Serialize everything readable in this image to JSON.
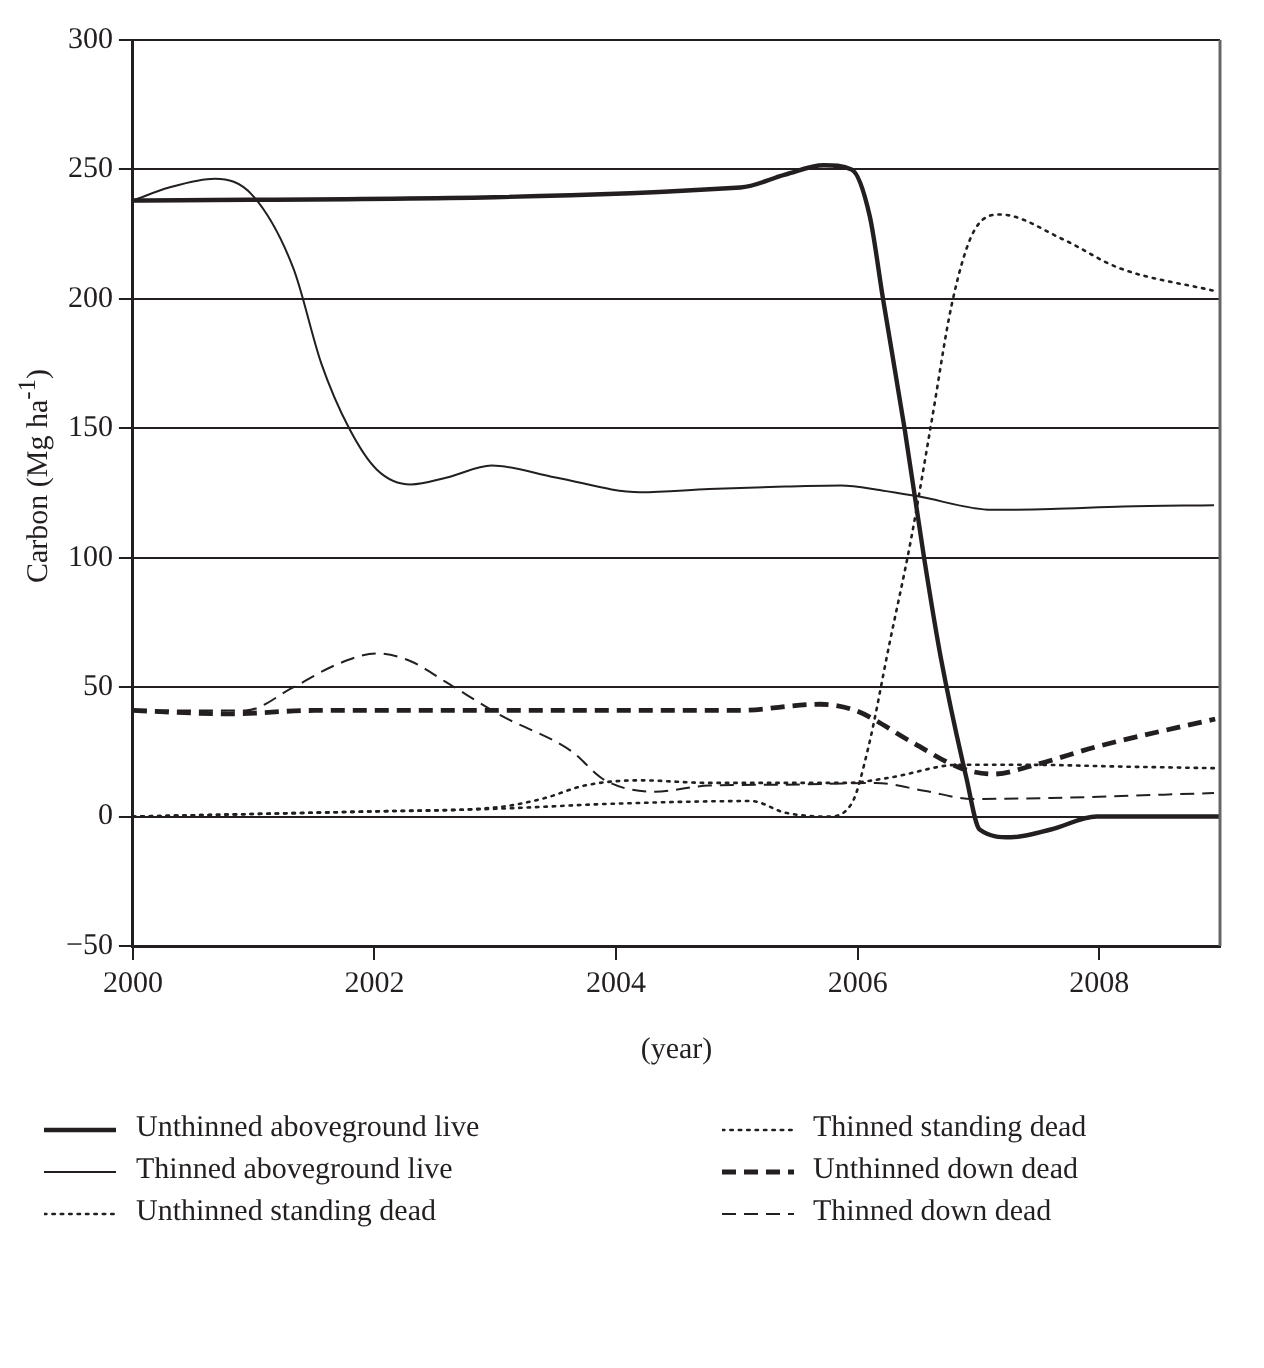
{
  "chart_data": {
    "type": "line",
    "xlabel": "(year)",
    "ylabel": "Carbon (Mg ha$^{-1}$)",
    "xlim": [
      2000,
      2009
    ],
    "xticks": [
      2000,
      2002,
      2004,
      2006,
      2008
    ],
    "ylim": [
      -50,
      300
    ],
    "yticks": [
      {
        "value": -50,
        "label": "−50"
      },
      0,
      50,
      100,
      150,
      200,
      250,
      300
    ],
    "grid": "y",
    "legend": "bottom",
    "marker": "none",
    "series": [
      {
        "name": "Unthinned aboveground live",
        "color": "#231f20",
        "line_style": "solid",
        "x": [
          2000,
          2005.03,
          2005.4,
          2005.72,
          2005.95,
          2006.1,
          2006.21,
          2006.39,
          2006.55,
          2006.69,
          2006.9,
          2007.01,
          2007.27,
          2007.6,
          2007.98,
          2009
        ],
        "values": [
          238,
          243,
          248,
          251.6,
          250,
          232,
          200,
          149.5,
          100,
          61,
          15,
          -5,
          -8,
          -5,
          0,
          0
        ]
      },
      {
        "name": "Thinned aboveground live",
        "color": "#231f20",
        "line_style": "solid",
        "x": [
          2000,
          2000.3,
          2000.68,
          2000.99,
          2001.33,
          2001.56,
          2001.79,
          2002.02,
          2002.3,
          2002.6,
          2002.97,
          2003.5,
          2004.2,
          2004.77,
          2005.4,
          2005.86,
          2006.2,
          2006.49,
          2007.12,
          2007.6,
          2008.2,
          2008.95
        ],
        "values": [
          238,
          243,
          246.4,
          240,
          211.6,
          175,
          150,
          134,
          128.3,
          131,
          135.6,
          131,
          125.3,
          126.5,
          127.5,
          127.9,
          126,
          123.8,
          118.5,
          118.8,
          119.8,
          120.3
        ]
      },
      {
        "name": "Unthinned standing dead",
        "color": "#231f20",
        "line_style": "dotted",
        "x": [
          2000,
          2001,
          2002,
          2003,
          2004,
          2005.12,
          2005.4,
          2005.75,
          2005.95,
          2006.09,
          2006.26,
          2006.44,
          2006.61,
          2006.78,
          2006.95,
          2007.18,
          2007.7,
          2008.16,
          2008.96
        ],
        "values": [
          0,
          1,
          2,
          3,
          5,
          6,
          1.5,
          0,
          5,
          27,
          66,
          106.6,
          152,
          198,
          225,
          232.6,
          223,
          212,
          203
        ]
      },
      {
        "name": "Thinned standing dead",
        "color": "#231f20",
        "line_style": "dotted",
        "x": [
          2000,
          2001,
          2002,
          2003,
          2003.4,
          2003.74,
          2004.2,
          2004.77,
          2005.4,
          2005.9,
          2006.26,
          2006.84,
          2007.4,
          2008.2,
          2008.95
        ],
        "values": [
          0,
          1,
          2,
          3.5,
          7,
          12,
          14,
          13,
          13,
          13,
          15,
          20,
          20,
          19.3,
          18.7
        ]
      },
      {
        "name": "Unthinned down dead",
        "color": "#231f20",
        "line_style": "dashed",
        "x": [
          2000,
          2000.8,
          2001.5,
          2003,
          2005,
          2005.69,
          2005.98,
          2006.44,
          2006.84,
          2007.12,
          2007.47,
          2007.98,
          2008.96
        ],
        "values": [
          41,
          39.7,
          41,
          41,
          41,
          43.4,
          41,
          29,
          19,
          16.4,
          20,
          27,
          37.7
        ]
      },
      {
        "name": "Thinned down dead",
        "color": "#231f20",
        "line_style": "dashed",
        "x": [
          2000,
          2000.93,
          2001.33,
          2001.7,
          2002.02,
          2002.3,
          2002.59,
          2003.05,
          2003.62,
          2003.91,
          2004.32,
          2004.77,
          2005.4,
          2006.15,
          2006.55,
          2006.95,
          2007.7,
          2008.95
        ],
        "values": [
          41,
          41,
          50,
          59,
          63,
          60,
          52,
          39,
          25.6,
          14,
          9.6,
          12,
          12.3,
          13,
          10,
          6.8,
          7.3,
          9.1
        ]
      }
    ]
  }
}
